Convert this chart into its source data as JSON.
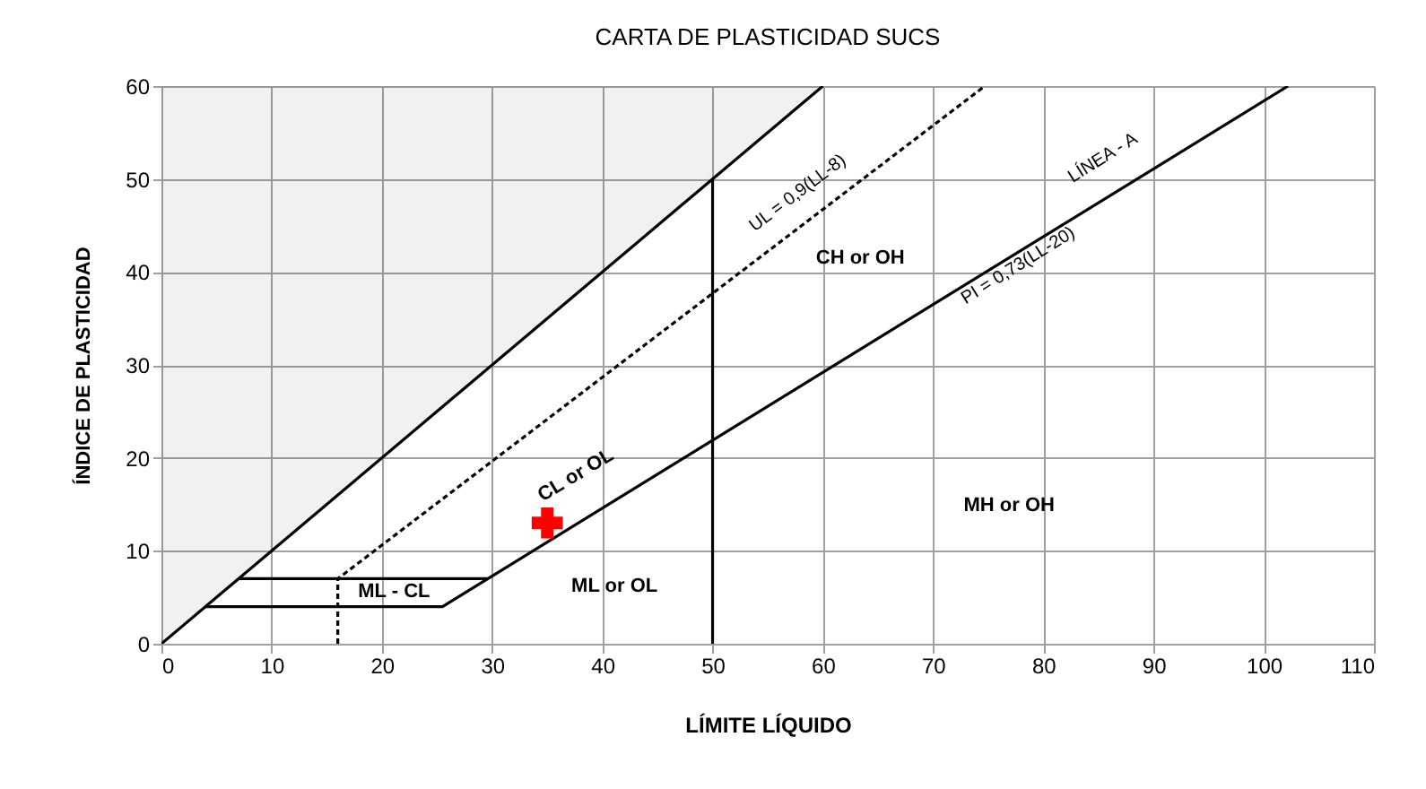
{
  "chart_data": {
    "type": "line",
    "title": "CARTA DE PLASTICIDAD SUCS",
    "xlabel": "LÍMITE LÍQUIDO",
    "ylabel": "ÍNDICE DE PLASTICIDAD",
    "xlim": [
      0,
      110
    ],
    "xticks": [
      0,
      10,
      20,
      30,
      40,
      50,
      60,
      70,
      80,
      90,
      100,
      110
    ],
    "ylim": [
      0,
      60
    ],
    "yticks": [
      0,
      10,
      20,
      30,
      40,
      50,
      60
    ],
    "grid": true,
    "series": [
      {
        "color": "#000000",
        "x": [
          0,
          60
        ],
        "values": [
          0,
          60
        ],
        "lower": [
          0,
          60
        ],
        "upper": [
          60,
          60
        ]
      },
      {
        "color": "#000000",
        "x": [
          4,
          25.5,
          102.2
        ],
        "values": [
          4,
          4,
          60
        ]
      },
      {
        "color": "#000000",
        "x": [
          7,
          29.6
        ],
        "values": [
          7,
          7
        ]
      },
      {
        "color": "#000000",
        "line_style": "dashed",
        "x": [
          16,
          16,
          74.7
        ],
        "values": [
          0,
          7,
          60
        ]
      },
      {
        "color": "#000000",
        "x": [
          50,
          50
        ],
        "values": [
          0,
          50
        ]
      },
      {
        "type": "scatter",
        "color": "#ff0000",
        "marker": "cross",
        "x": [
          35
        ],
        "values": [
          13
        ]
      }
    ],
    "annotations": [
      "UL = 0,9(LL-8)",
      "LÍNEA - A",
      "PI = 0,73(LL-20)",
      "CH  or OH",
      "MH  or  OH",
      "CL  or  OL",
      "ML - CL",
      "ML  or  OL"
    ]
  }
}
